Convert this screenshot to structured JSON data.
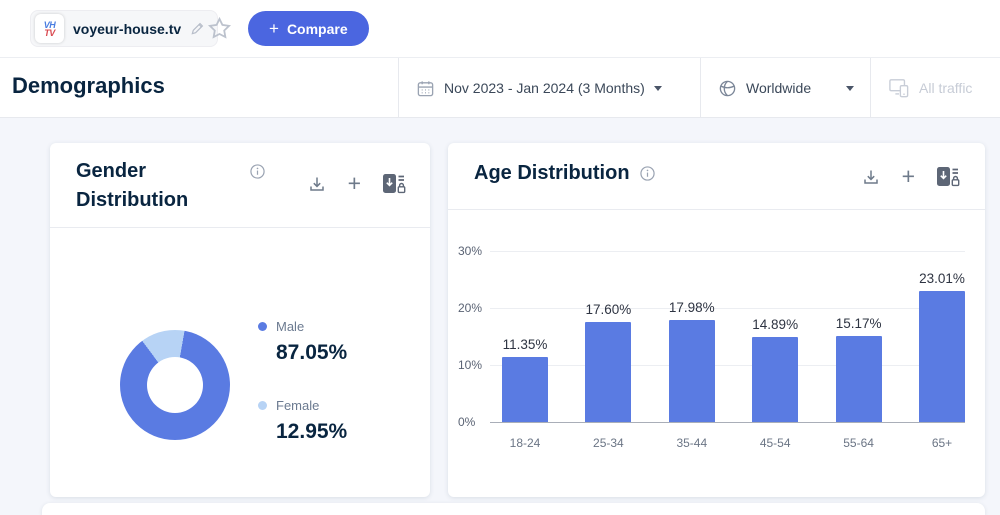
{
  "colors": {
    "primary_blue": "#4b66e0",
    "bar_blue": "#5a7be2",
    "male_blue": "#5a7be2",
    "female_blue": "#b7d3f5",
    "title_dark": "#092540"
  },
  "topbar": {
    "favicon_line1": "VH",
    "favicon_line2": "TV",
    "domain": "voyeur-house.tv",
    "compare_plus": "+",
    "compare_label": "Compare"
  },
  "page_header": {
    "title": "Demographics",
    "date_filter": "Nov 2023 - Jan 2024 (3 Months)",
    "region_filter": "Worldwide",
    "traffic_filter": "All traffic"
  },
  "gender_card": {
    "title": "Gender Distribution",
    "legend": [
      {
        "label": "Male",
        "value": "87.05%"
      },
      {
        "label": "Female",
        "value": "12.95%"
      }
    ]
  },
  "age_card": {
    "title": "Age Distribution"
  },
  "chart_data": [
    {
      "type": "pie",
      "title": "Gender Distribution",
      "labels": [
        "Male",
        "Female"
      ],
      "values": [
        87.05,
        12.95
      ],
      "colors": [
        "#5a7be2",
        "#b7d3f5"
      ],
      "donut": true,
      "legend_position": "right"
    },
    {
      "type": "bar",
      "title": "Age Distribution",
      "categories": [
        "18-24",
        "25-34",
        "35-44",
        "45-54",
        "55-64",
        "65+"
      ],
      "values": [
        11.35,
        17.6,
        17.98,
        14.89,
        15.17,
        23.01
      ],
      "value_labels": [
        "11.35%",
        "17.60%",
        "17.98%",
        "14.89%",
        "15.17%",
        "23.01%"
      ],
      "ytick_labels": [
        "0%",
        "10%",
        "20%",
        "30%"
      ],
      "ylim": [
        0,
        30
      ],
      "grid": true,
      "bar_color": "#5a7be2"
    }
  ]
}
